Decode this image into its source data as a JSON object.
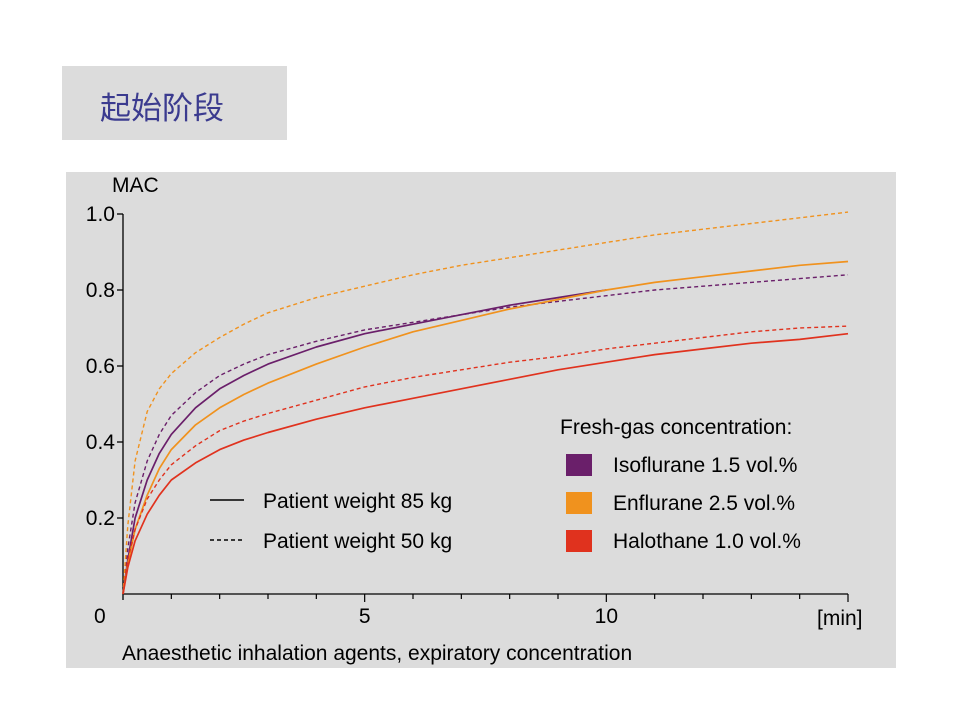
{
  "slide": {
    "title": "起始阶段"
  },
  "chart_data": {
    "type": "line",
    "title": "",
    "ylabel": "MAC",
    "xlabel": "Anaesthetic inhalation agents, expiratory concentration",
    "x_unit": "[min]",
    "xlim": [
      0,
      15
    ],
    "ylim": [
      0,
      1.0
    ],
    "x_origin_label": "0",
    "x_ticks": [
      {
        "value": 5,
        "label": "5"
      },
      {
        "value": 10,
        "label": "10"
      }
    ],
    "y_ticks": [
      {
        "value": 0.2,
        "label": "0.2"
      },
      {
        "value": 0.4,
        "label": "0.4"
      },
      {
        "value": 0.6,
        "label": "0.6"
      },
      {
        "value": 0.8,
        "label": "0.8"
      },
      {
        "value": 1.0,
        "label": "1.0"
      }
    ],
    "grid": false,
    "legend_title": "Fresh-gas concentration:",
    "agents": [
      {
        "name": "Isoflurane 1.5 vol.%",
        "color": "#6a1f6a"
      },
      {
        "name": "Enflurane 2.5 vol.%",
        "color": "#f0921e"
      },
      {
        "name": "Halothane 1.0 vol.%",
        "color": "#e0321e"
      }
    ],
    "line_styles": [
      {
        "name": "Patient weight 85 kg",
        "style": "solid"
      },
      {
        "name": "Patient weight 50 kg",
        "style": "dashed"
      }
    ],
    "x": [
      0,
      0.1,
      0.25,
      0.5,
      0.75,
      1,
      1.5,
      2,
      2.5,
      3,
      4,
      5,
      6,
      7,
      8,
      9,
      10,
      11,
      12,
      13,
      14,
      15
    ],
    "series": [
      {
        "agent": "Isoflurane 1.5 vol.%",
        "weight": "Patient weight 85 kg",
        "style": "solid",
        "color": "#6a1f6a",
        "values": [
          0,
          0.09,
          0.2,
          0.3,
          0.37,
          0.42,
          0.49,
          0.54,
          0.575,
          0.605,
          0.65,
          0.685,
          0.71,
          0.735,
          0.76,
          0.78,
          0.8,
          null,
          null,
          null,
          null,
          null
        ]
      },
      {
        "agent": "Isoflurane 1.5 vol.%",
        "weight": "Patient weight 50 kg",
        "style": "dashed",
        "color": "#6a1f6a",
        "values": [
          0,
          0.12,
          0.24,
          0.35,
          0.42,
          0.47,
          0.53,
          0.575,
          0.605,
          0.63,
          0.665,
          0.695,
          0.715,
          0.735,
          0.755,
          0.77,
          0.785,
          0.8,
          0.81,
          0.82,
          0.83,
          0.84
        ]
      },
      {
        "agent": "Enflurane 2.5 vol.%",
        "weight": "Patient weight 85 kg",
        "style": "solid",
        "color": "#f0921e",
        "values": [
          0,
          0.08,
          0.17,
          0.26,
          0.33,
          0.38,
          0.445,
          0.49,
          0.525,
          0.555,
          0.605,
          0.65,
          0.69,
          0.72,
          0.75,
          0.775,
          0.8,
          0.82,
          0.835,
          0.85,
          0.865,
          0.875
        ]
      },
      {
        "agent": "Enflurane 2.5 vol.%",
        "weight": "Patient weight 50 kg",
        "style": "dashed",
        "color": "#f0921e",
        "values": [
          0,
          0.18,
          0.35,
          0.48,
          0.54,
          0.58,
          0.635,
          0.675,
          0.71,
          0.74,
          0.78,
          0.81,
          0.84,
          0.865,
          0.885,
          0.905,
          0.925,
          0.945,
          0.96,
          0.975,
          0.99,
          1.005
        ]
      },
      {
        "agent": "Halothane 1.0 vol.%",
        "weight": "Patient weight 85 kg",
        "style": "solid",
        "color": "#e0321e",
        "values": [
          0,
          0.07,
          0.14,
          0.21,
          0.26,
          0.3,
          0.345,
          0.38,
          0.405,
          0.425,
          0.46,
          0.49,
          0.515,
          0.54,
          0.565,
          0.59,
          0.61,
          0.63,
          0.645,
          0.66,
          0.67,
          0.685
        ]
      },
      {
        "agent": "Halothane 1.0 vol.%",
        "weight": "Patient weight 50 kg",
        "style": "dashed",
        "color": "#e0321e",
        "values": [
          0,
          0.09,
          0.17,
          0.25,
          0.3,
          0.34,
          0.39,
          0.43,
          0.455,
          0.475,
          0.51,
          0.545,
          0.57,
          0.59,
          0.61,
          0.625,
          0.645,
          0.66,
          0.675,
          0.69,
          0.7,
          0.705
        ]
      }
    ]
  }
}
